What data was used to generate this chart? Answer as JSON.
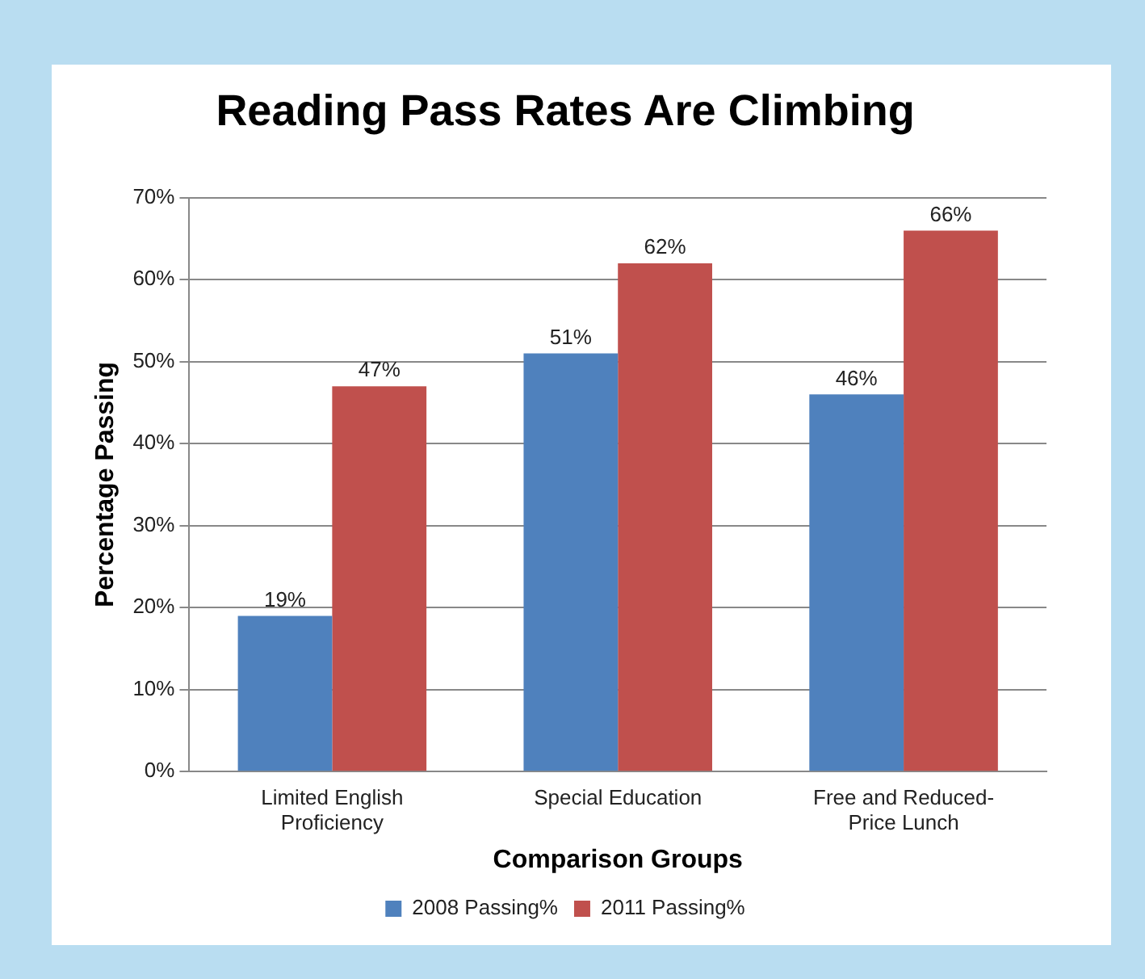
{
  "chart_data": {
    "type": "bar",
    "title": "Reading Pass Rates Are Climbing",
    "xlabel": "Comparison Groups",
    "ylabel": "Percentage Passing",
    "categories": [
      "Limited English Proficiency",
      "Special Education",
      "Free and Reduced-Price Lunch"
    ],
    "series": [
      {
        "name": "2008 Passing%",
        "color": "#4f81bd",
        "values": [
          19,
          51,
          46
        ],
        "value_labels": [
          "19%",
          "51%",
          "46%"
        ]
      },
      {
        "name": "2011 Passing%",
        "color": "#c0504d",
        "values": [
          47,
          62,
          66
        ],
        "value_labels": [
          "47%",
          "62%",
          "66%"
        ]
      }
    ],
    "ylim": [
      0,
      70
    ],
    "yticks": [
      {
        "value": 0,
        "label": "0%"
      },
      {
        "value": 10,
        "label": "10%"
      },
      {
        "value": 20,
        "label": "20%"
      },
      {
        "value": 30,
        "label": "30%"
      },
      {
        "value": 40,
        "label": "40%"
      },
      {
        "value": 50,
        "label": "50%"
      },
      {
        "value": 60,
        "label": "60%"
      },
      {
        "value": 70,
        "label": "70%"
      }
    ],
    "grid": "y",
    "legend": "bottom"
  }
}
